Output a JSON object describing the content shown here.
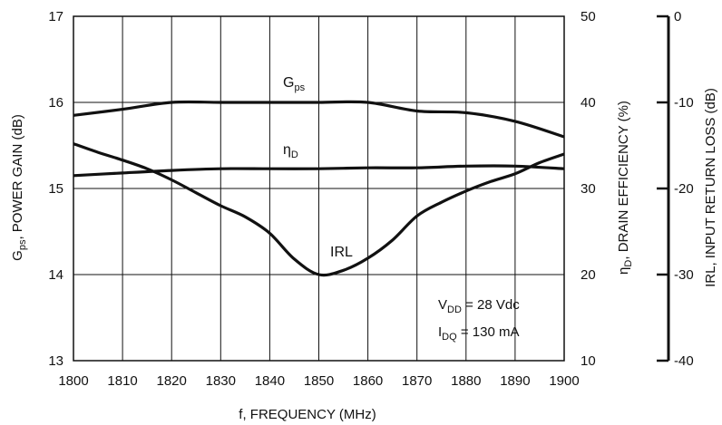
{
  "chart_data": {
    "type": "line",
    "x_label": "f, FREQUENCY (MHz)",
    "x_ticks": [
      "1800",
      "1810",
      "1820",
      "1830",
      "1840",
      "1850",
      "1860",
      "1870",
      "1880",
      "1890",
      "1900"
    ],
    "xlim": [
      1800,
      1900
    ],
    "grid": true,
    "left_axis": {
      "label_main": "G",
      "label_sub": "ps",
      "label_rest": ", POWER GAIN (dB)",
      "ylim": [
        13,
        17
      ],
      "ticks": [
        "13",
        "14",
        "15",
        "16",
        "17"
      ]
    },
    "right_axis_1": {
      "label_main": "η",
      "label_sub": "D",
      "label_rest": ", DRAIN EFFICIENCY (%)",
      "ylim": [
        10,
        50
      ],
      "ticks": [
        "10",
        "20",
        "30",
        "40",
        "50"
      ]
    },
    "right_axis_2": {
      "label": "IRL, INPUT RETURN LOSS (dB)",
      "ylim": [
        -40,
        0
      ],
      "ticks": [
        "-40",
        "-30",
        "-20",
        "-10",
        "0"
      ]
    },
    "series": [
      {
        "name_main": "G",
        "name_sub": "ps",
        "axis": "left",
        "x": [
          1800,
          1810,
          1820,
          1830,
          1840,
          1850,
          1860,
          1870,
          1880,
          1890,
          1900
        ],
        "values": [
          15.85,
          15.92,
          16.0,
          16.0,
          16.0,
          16.0,
          16.0,
          15.9,
          15.88,
          15.78,
          15.6
        ]
      },
      {
        "name_main": "η",
        "name_sub": "D",
        "axis": "right_1",
        "x": [
          1800,
          1810,
          1820,
          1830,
          1840,
          1850,
          1860,
          1870,
          1880,
          1890,
          1900
        ],
        "values": [
          31.5,
          31.8,
          32.1,
          32.3,
          32.3,
          32.3,
          32.4,
          32.4,
          32.6,
          32.6,
          32.3
        ]
      },
      {
        "name_main": "IRL",
        "name_sub": "",
        "axis": "right_2",
        "x": [
          1800,
          1805,
          1810,
          1815,
          1820,
          1825,
          1830,
          1835,
          1840,
          1845,
          1850,
          1855,
          1860,
          1865,
          1870,
          1875,
          1880,
          1885,
          1890,
          1895,
          1900
        ],
        "values": [
          -14.8,
          -15.8,
          -16.7,
          -17.7,
          -19.0,
          -20.5,
          -22.0,
          -23.3,
          -25.2,
          -28.2,
          -30.0,
          -29.5,
          -28.1,
          -26.0,
          -23.2,
          -21.6,
          -20.3,
          -19.2,
          -18.3,
          -17.0,
          -16.0
        ]
      }
    ],
    "conditions": [
      {
        "main": "V",
        "sub": "DD",
        "rest": " = 28 Vdc"
      },
      {
        "main": "I",
        "sub": "DQ",
        "rest": " = 130 mA"
      }
    ]
  },
  "colors": {
    "curve": "#111111",
    "grid": "#111111",
    "text": "#111111"
  }
}
